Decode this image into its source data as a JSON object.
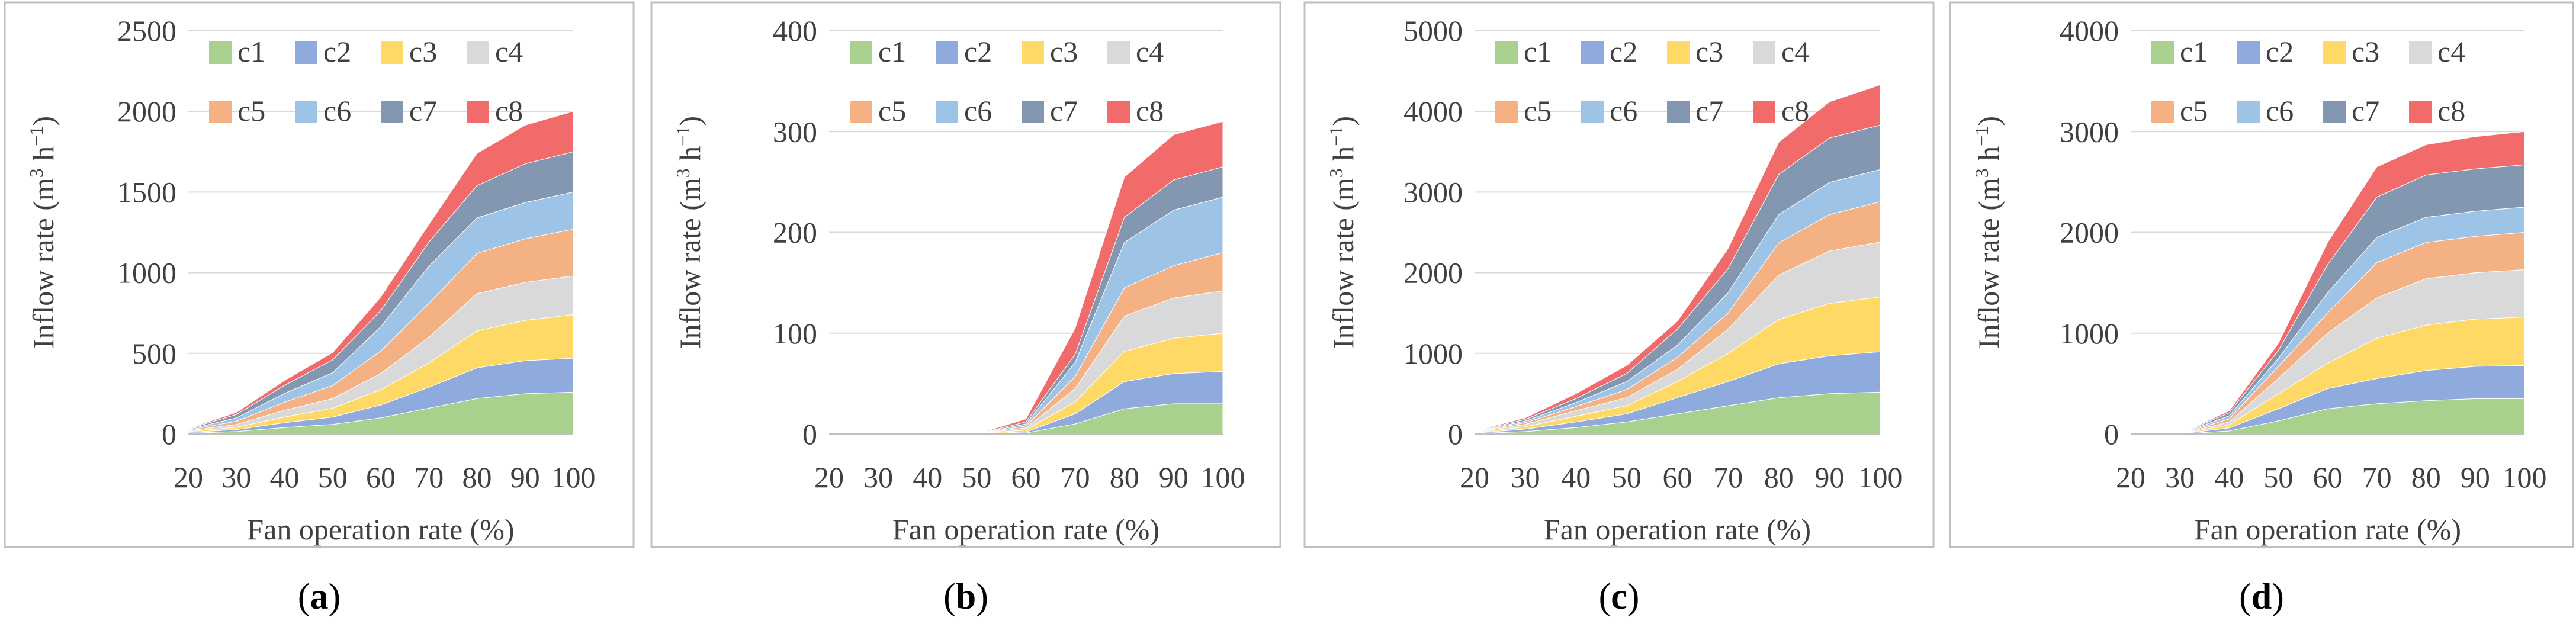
{
  "chart_data": [
    {
      "type": "area",
      "stacked": true,
      "panel_label": "a",
      "xlabel": "Fan operation rate (%)",
      "ylabel": "Inflow rate (m3 h−1)",
      "x": [
        20,
        30,
        40,
        50,
        60,
        70,
        80,
        90,
        100
      ],
      "ylim": [
        0,
        2500
      ],
      "yticks": [
        0,
        500,
        1000,
        1500,
        2000,
        2500
      ],
      "series": [
        {
          "name": "c1",
          "values": [
            5,
            15,
            40,
            60,
            100,
            160,
            220,
            250,
            260
          ]
        },
        {
          "name": "c2",
          "values": [
            5,
            12,
            30,
            45,
            80,
            130,
            190,
            205,
            210
          ]
        },
        {
          "name": "c3",
          "values": [
            5,
            15,
            35,
            55,
            95,
            150,
            230,
            250,
            270
          ]
        },
        {
          "name": "c4",
          "values": [
            5,
            17,
            42,
            60,
            100,
            160,
            230,
            235,
            240
          ]
        },
        {
          "name": "c5",
          "values": [
            5,
            20,
            50,
            80,
            140,
            210,
            250,
            270,
            290
          ]
        },
        {
          "name": "c6",
          "values": [
            4,
            21,
            55,
            80,
            150,
            230,
            220,
            225,
            230
          ]
        },
        {
          "name": "c7",
          "values": [
            3,
            21,
            50,
            80,
            100,
            150,
            200,
            240,
            250
          ]
        },
        {
          "name": "c8",
          "values": [
            2,
            13,
            30,
            45,
            85,
            110,
            200,
            240,
            250
          ]
        }
      ]
    },
    {
      "type": "area",
      "stacked": true,
      "panel_label": "b",
      "xlabel": "Fan operation rate (%)",
      "ylabel": "Inflow rate (m3 h−1)",
      "x": [
        20,
        30,
        40,
        50,
        60,
        70,
        80,
        90,
        100
      ],
      "ylim": [
        0,
        400
      ],
      "yticks": [
        0,
        100,
        200,
        300,
        400
      ],
      "series": [
        {
          "name": "c1",
          "values": [
            0,
            0,
            0,
            0,
            1,
            10,
            25,
            30,
            30
          ]
        },
        {
          "name": "c2",
          "values": [
            0,
            0,
            0,
            0,
            1,
            10,
            27,
            30,
            32
          ]
        },
        {
          "name": "c3",
          "values": [
            0,
            0,
            0,
            0,
            2,
            12,
            30,
            35,
            38
          ]
        },
        {
          "name": "c4",
          "values": [
            0,
            0,
            0,
            0,
            2,
            13,
            35,
            40,
            42
          ]
        },
        {
          "name": "c5",
          "values": [
            0,
            0,
            0,
            0,
            2,
            12,
            28,
            32,
            38
          ]
        },
        {
          "name": "c6",
          "values": [
            0,
            0,
            0,
            0,
            2,
            14,
            45,
            55,
            55
          ]
        },
        {
          "name": "c7",
          "values": [
            0,
            0,
            0,
            0,
            2,
            8,
            25,
            30,
            30
          ]
        },
        {
          "name": "c8",
          "values": [
            0,
            0,
            0,
            0,
            3,
            26,
            40,
            45,
            45
          ]
        }
      ]
    },
    {
      "type": "area",
      "stacked": true,
      "panel_label": "c",
      "xlabel": "Fan operation rate (%)",
      "ylabel": "Inflow rate (m3 h−1)",
      "x": [
        20,
        30,
        40,
        50,
        60,
        70,
        80,
        90,
        100
      ],
      "ylim": [
        0,
        5000
      ],
      "yticks": [
        0,
        1000,
        2000,
        3000,
        4000,
        5000
      ],
      "series": [
        {
          "name": "c1",
          "values": [
            5,
            30,
            80,
            150,
            250,
            350,
            450,
            500,
            520
          ]
        },
        {
          "name": "c2",
          "values": [
            5,
            30,
            70,
            100,
            200,
            300,
            420,
            470,
            500
          ]
        },
        {
          "name": "c3",
          "values": [
            5,
            30,
            70,
            100,
            200,
            350,
            550,
            650,
            680
          ]
        },
        {
          "name": "c4",
          "values": [
            5,
            30,
            70,
            100,
            150,
            300,
            550,
            650,
            680
          ]
        },
        {
          "name": "c5",
          "values": [
            5,
            20,
            50,
            100,
            150,
            200,
            400,
            450,
            500
          ]
        },
        {
          "name": "c6",
          "values": [
            5,
            20,
            50,
            100,
            150,
            250,
            350,
            400,
            400
          ]
        },
        {
          "name": "c7",
          "values": [
            5,
            20,
            50,
            100,
            200,
            300,
            500,
            550,
            550
          ]
        },
        {
          "name": "c8",
          "values": [
            5,
            20,
            60,
            100,
            100,
            250,
            400,
            450,
            500
          ]
        }
      ]
    },
    {
      "type": "area",
      "stacked": true,
      "panel_label": "d",
      "xlabel": "Fan operation rate (%)",
      "ylabel": "Inflow rate (m3 h−1)",
      "x": [
        20,
        30,
        40,
        50,
        60,
        70,
        80,
        90,
        100
      ],
      "ylim": [
        0,
        4000
      ],
      "yticks": [
        0,
        1000,
        2000,
        3000,
        4000
      ],
      "series": [
        {
          "name": "c1",
          "values": [
            0,
            0,
            30,
            130,
            250,
            300,
            330,
            350,
            350
          ]
        },
        {
          "name": "c2",
          "values": [
            0,
            0,
            30,
            120,
            200,
            250,
            300,
            320,
            330
          ]
        },
        {
          "name": "c3",
          "values": [
            0,
            0,
            30,
            150,
            250,
            400,
            450,
            470,
            480
          ]
        },
        {
          "name": "c4",
          "values": [
            0,
            0,
            30,
            150,
            300,
            400,
            460,
            460,
            470
          ]
        },
        {
          "name": "c5",
          "values": [
            0,
            0,
            30,
            120,
            200,
            350,
            360,
            360,
            370
          ]
        },
        {
          "name": "c6",
          "values": [
            0,
            0,
            30,
            80,
            200,
            250,
            250,
            250,
            250
          ]
        },
        {
          "name": "c7",
          "values": [
            0,
            0,
            30,
            80,
            280,
            400,
            420,
            420,
            420
          ]
        },
        {
          "name": "c8",
          "values": [
            0,
            0,
            20,
            70,
            220,
            300,
            300,
            320,
            330
          ]
        }
      ]
    }
  ],
  "series_colors": [
    "#a9d18e",
    "#8faadc",
    "#ffd966",
    "#d9d9d9",
    "#f4b183",
    "#9dc3e6",
    "#8497b0",
    "#f16b6b"
  ]
}
